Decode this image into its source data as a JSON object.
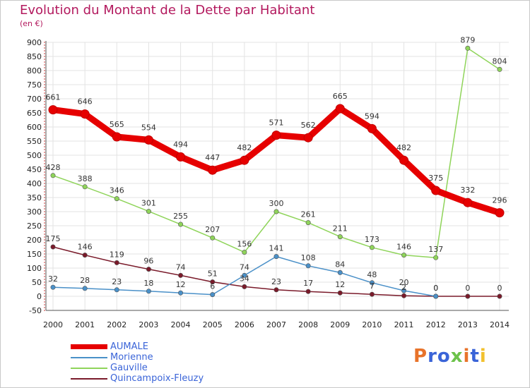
{
  "header": {
    "title": "Evolution du Montant de la Dette par Habitant",
    "subtitle": "(en €)"
  },
  "logo": {
    "letters": [
      "P",
      "r",
      "o",
      "x",
      "i",
      "t",
      "i"
    ],
    "colors": [
      "#e8732a",
      "#3a64d8",
      "#3a64d8",
      "#6cc24a",
      "#e8732a",
      "#3a64d8",
      "#f2c12e"
    ]
  },
  "chart_data": {
    "type": "line",
    "title": "Evolution du Montant de la Dette par Habitant",
    "subtitle": "(en €)",
    "xlabel": "",
    "ylabel": "",
    "ylim": [
      -50,
      900
    ],
    "yticks": [
      -50,
      0,
      50,
      100,
      150,
      200,
      250,
      300,
      350,
      400,
      450,
      500,
      550,
      600,
      650,
      700,
      750,
      800,
      850,
      900
    ],
    "x": [
      "2000",
      "2001",
      "2002",
      "2003",
      "2004",
      "2005",
      "2006",
      "2007",
      "2008",
      "2009",
      "2010",
      "2011",
      "2012",
      "2013",
      "2014"
    ],
    "grid": true,
    "legend_position": "bottom-left",
    "series": [
      {
        "name": "AUMALE",
        "color": "#e60000",
        "bold": true,
        "values": [
          661,
          646,
          565,
          554,
          494,
          447,
          482,
          571,
          562,
          665,
          594,
          482,
          375,
          332,
          296
        ],
        "labels": [
          "661",
          "646",
          "565",
          "554",
          "494",
          "447",
          "482",
          "571",
          "562",
          "665",
          "594",
          "482",
          "375",
          "332",
          "296"
        ]
      },
      {
        "name": "Morienne",
        "color": "#4a90c8",
        "bold": false,
        "values": [
          32,
          28,
          23,
          18,
          12,
          6,
          74,
          141,
          108,
          84,
          48,
          20,
          0,
          null,
          null
        ],
        "labels": [
          "32",
          "28",
          "23",
          "18",
          "12",
          "6",
          "74",
          "141",
          "108",
          "84",
          "48",
          "20",
          "0",
          "",
          ""
        ]
      },
      {
        "name": "Gauville",
        "color": "#8fd45a",
        "bold": false,
        "values": [
          428,
          388,
          346,
          301,
          255,
          207,
          156,
          300,
          261,
          211,
          173,
          146,
          137,
          879,
          804
        ],
        "labels": [
          "428",
          "388",
          "346",
          "301",
          "255",
          "207",
          "156",
          "300",
          "261",
          "211",
          "173",
          "146",
          "137",
          "879",
          "804"
        ]
      },
      {
        "name": "Quincampoix-Fleuzy",
        "color": "#7a1a2a",
        "bold": false,
        "values": [
          175,
          146,
          119,
          96,
          74,
          51,
          34,
          23,
          17,
          12,
          7,
          2,
          0,
          0,
          0
        ],
        "labels": [
          "175",
          "146",
          "119",
          "96",
          "74",
          "51",
          "34",
          "23",
          "17",
          "12",
          "7",
          "2",
          "0",
          "0",
          "0"
        ]
      }
    ]
  }
}
